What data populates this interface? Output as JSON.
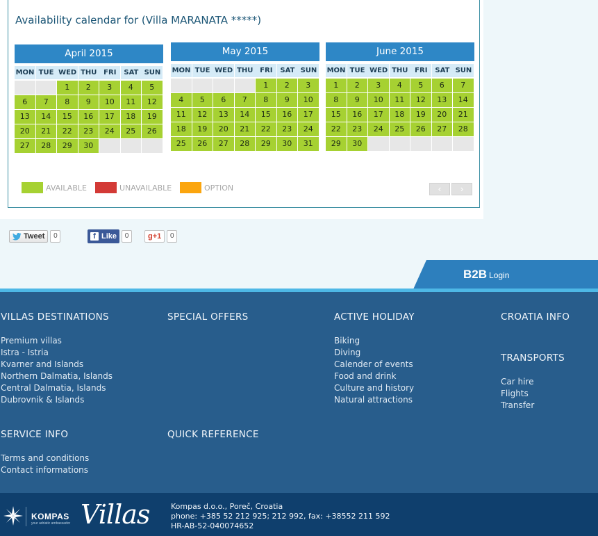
{
  "calendar": {
    "title": "Availability calendar for (Villa MARANATA *****)",
    "weekdays": [
      "MON",
      "TUE",
      "WED",
      "THU",
      "FRI",
      "SAT",
      "SUN"
    ],
    "months": [
      {
        "name": "April 2015",
        "lead_empty": 2,
        "days": 30,
        "trail_empty": 3
      },
      {
        "name": "May 2015",
        "lead_empty": 4,
        "days": 31,
        "trail_empty": 0
      },
      {
        "name": "June 2015",
        "lead_empty": 0,
        "days": 30,
        "trail_empty": 5
      }
    ],
    "legend": [
      {
        "label": "AVAILABLE",
        "color": "#a6d132"
      },
      {
        "label": "UNAVAILABLE",
        "color": "#d33a36"
      },
      {
        "label": "OPTION",
        "color": "#fba50e"
      }
    ],
    "prev_icon": "chevron-left",
    "next_icon": "chevron-right"
  },
  "social": {
    "tweet_label": "Tweet",
    "tweet_count": "0",
    "like_label": "Like",
    "like_count": "0",
    "gplus_label": "g+1",
    "gplus_count": "0"
  },
  "b2b": {
    "strong": "B2B",
    "login": "Login"
  },
  "footer": {
    "villas_destinations": {
      "heading": "VILLAS DESTINATIONS",
      "links": [
        "Premium villas",
        "Istra - Istria",
        "Kvarner and Islands",
        "Northern Dalmatia, Islands",
        "Central Dalmatia, Islands",
        "Dubrovnik & Islands"
      ]
    },
    "special_offers": {
      "heading": "SPECIAL OFFERS"
    },
    "active_holiday": {
      "heading": "ACTIVE HOLIDAY",
      "links": [
        "Biking",
        "Diving",
        "Calender of events",
        "Food and drink",
        "Culture and history",
        "Natural attractions"
      ]
    },
    "croatia_info": {
      "heading": "CROATIA INFO"
    },
    "transports": {
      "heading": "TRANSPORTS",
      "links": [
        "Car hire",
        "Flights",
        "Transfer"
      ]
    },
    "service_info": {
      "heading": "SERVICE INFO",
      "links": [
        "Terms and conditions",
        "Contact informations"
      ]
    },
    "quick_reference": {
      "heading": "QUICK REFERENCE"
    }
  },
  "brand": {
    "kompas": "KOMPAS",
    "tagline": "your adriatic ambassador",
    "villas": "Villas",
    "contact": [
      "Kompas d.o.o., Poreč, Croatia",
      "phone: +385 52 212 925; 212 992, fax: +38552 211 592",
      "HR-AB-52-040074652"
    ]
  }
}
